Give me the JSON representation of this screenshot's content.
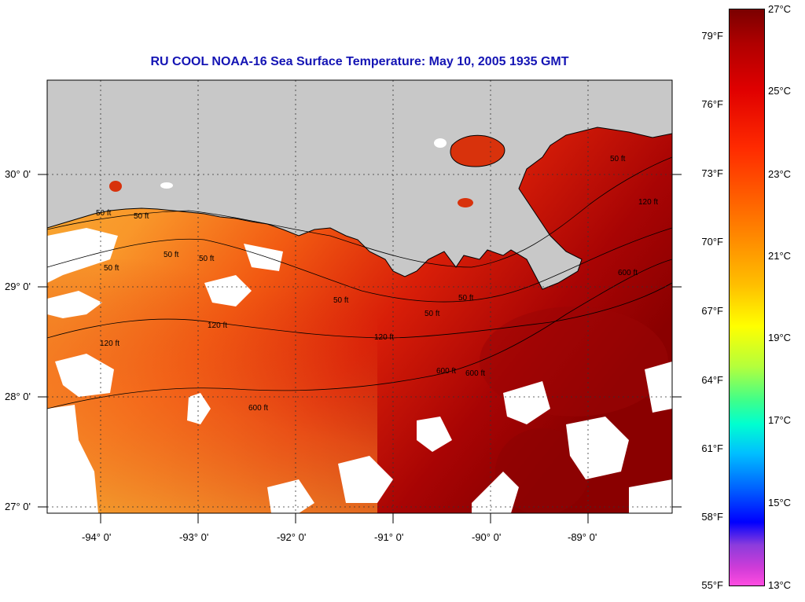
{
  "title": "RU COOL  NOAA-16  Sea Surface Temperature:  May 10, 2005 1935 GMT",
  "map": {
    "lat_labels": [
      "30° 0'",
      "29° 0'",
      "28° 0'",
      "27° 0'"
    ],
    "lon_labels": [
      "-94° 0'",
      "-93° 0'",
      "-92° 0'",
      "-91° 0'",
      "-90° 0'",
      "-89° 0'"
    ],
    "contour_labels": [
      "50 ft",
      "50 ft",
      "50 ft",
      "50 ft",
      "50 ft",
      "50 ft",
      "50 ft",
      "50 ft",
      "50 ft",
      "120 ft",
      "120 ft",
      "120 ft",
      "600 ft",
      "600 ft",
      "600 ft",
      "600 ft",
      "120 ft"
    ],
    "colors": {
      "land": "#c8c8c8",
      "cloud": "#ffffff",
      "warm": "#c00000",
      "mid": "#ff6400",
      "cool": "#f0a030"
    }
  },
  "colorbar": {
    "fahrenheit": [
      "79°F",
      "76°F",
      "73°F",
      "70°F",
      "67°F",
      "64°F",
      "61°F",
      "58°F",
      "55°F"
    ],
    "celsius": [
      "27°C",
      "25°C",
      "23°C",
      "21°C",
      "19°C",
      "17°C",
      "15°C",
      "13°C"
    ]
  }
}
